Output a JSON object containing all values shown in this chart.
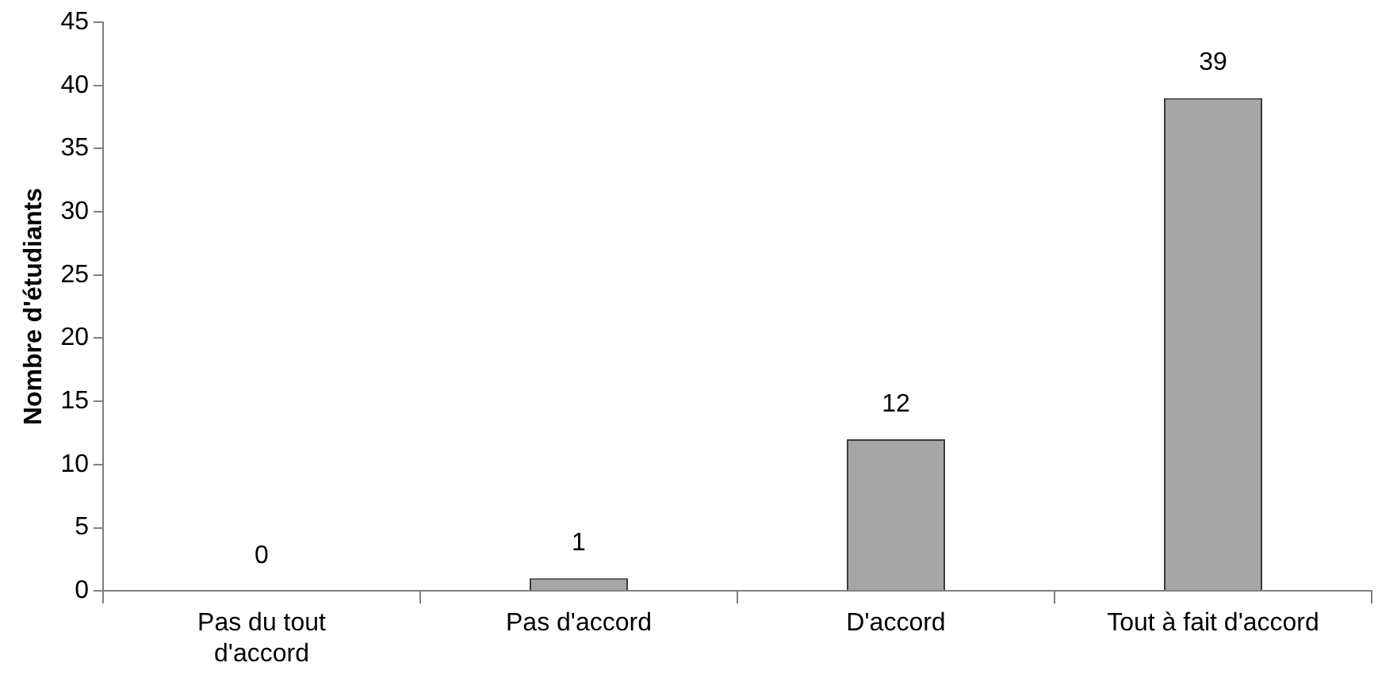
{
  "chart_data": {
    "type": "bar",
    "ylabel": "Nombre d'étudiants",
    "categories": [
      "Pas du tout\nd'accord",
      "Pas d'accord",
      "D'accord",
      "Tout à fait d'accord"
    ],
    "values": [
      0,
      1,
      12,
      39
    ],
    "color": "#a6a6a6",
    "ylim": [
      0,
      45
    ],
    "yticks": [
      0,
      5,
      10,
      15,
      20,
      25,
      30,
      35,
      40,
      45
    ],
    "grid": false,
    "legend": false,
    "data_labels": true
  }
}
